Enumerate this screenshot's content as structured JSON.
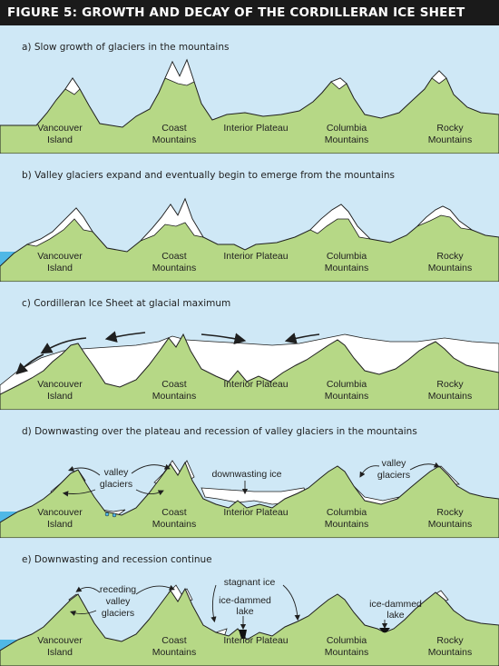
{
  "figure_title": "FIGURE 5: GROWTH AND DECAY OF THE CORDILLERAN ICE SHEET",
  "colors": {
    "sky": "#cfe8f6",
    "land": "#b6d886",
    "land_outline": "#1f1f1f",
    "ice": "#ffffff",
    "ocean": "#4fb8e6",
    "lake": "#111111",
    "header_bg": "#1a1a1a"
  },
  "panels": [
    {
      "caption": "a)  Slow growth of glaciers in the mountains",
      "regions": [
        {
          "line1": "Vancouver",
          "line2": "Island"
        },
        {
          "line1": "Coast",
          "line2": "Mountains"
        },
        {
          "line1": "Interior Plateau",
          "line2": ""
        },
        {
          "line1": "Columbia",
          "line2": "Mountains"
        },
        {
          "line1": "Rocky",
          "line2": "Mountains"
        }
      ],
      "annotations": []
    },
    {
      "caption": "b)  Valley glaciers expand and eventually begin to emerge from the mountains",
      "regions": [
        {
          "line1": "Vancouver",
          "line2": "Island"
        },
        {
          "line1": "Coast",
          "line2": "Mountains"
        },
        {
          "line1": "Interior Plateau",
          "line2": ""
        },
        {
          "line1": "Columbia",
          "line2": "Mountains"
        },
        {
          "line1": "Rocky",
          "line2": "Mountains"
        }
      ],
      "annotations": []
    },
    {
      "caption": "c)  Cordilleran Ice Sheet at glacial maximum",
      "regions": [
        {
          "line1": "Vancouver",
          "line2": "Island"
        },
        {
          "line1": "Coast",
          "line2": "Mountains"
        },
        {
          "line1": "Interior Plateau",
          "line2": ""
        },
        {
          "line1": "Columbia",
          "line2": "Mountains"
        },
        {
          "line1": "Rocky",
          "line2": "Mountains"
        }
      ],
      "annotations": []
    },
    {
      "caption": "d)  Downwasting over the plateau and recession of valley glaciers in the mountains",
      "regions": [
        {
          "line1": "Vancouver",
          "line2": "Island"
        },
        {
          "line1": "Coast",
          "line2": "Mountains"
        },
        {
          "line1": "Interior Plateau",
          "line2": ""
        },
        {
          "line1": "Columbia",
          "line2": "Mountains"
        },
        {
          "line1": "Rocky",
          "line2": "Mountains"
        }
      ],
      "annotations": [
        {
          "line1": "valley",
          "line2": "glaciers"
        },
        {
          "line1": "downwasting ice",
          "line2": ""
        },
        {
          "line1": "valley",
          "line2": "glaciers"
        }
      ]
    },
    {
      "caption": "e)  Downwasting and recession continue",
      "regions": [
        {
          "line1": "Vancouver",
          "line2": "Island"
        },
        {
          "line1": "Coast",
          "line2": "Mountains"
        },
        {
          "line1": "Interior Plateau",
          "line2": ""
        },
        {
          "line1": "Columbia",
          "line2": "Mountains"
        },
        {
          "line1": "Rocky",
          "line2": "Mountains"
        }
      ],
      "annotations": [
        {
          "line1": "receding",
          "line2": "valley",
          "line3": "glaciers"
        },
        {
          "line1": "stagnant ice",
          "line2": ""
        },
        {
          "line1": "ice-dammed",
          "line2": "lake"
        },
        {
          "line1": "ice-dammed",
          "line2": "lake"
        }
      ]
    }
  ]
}
